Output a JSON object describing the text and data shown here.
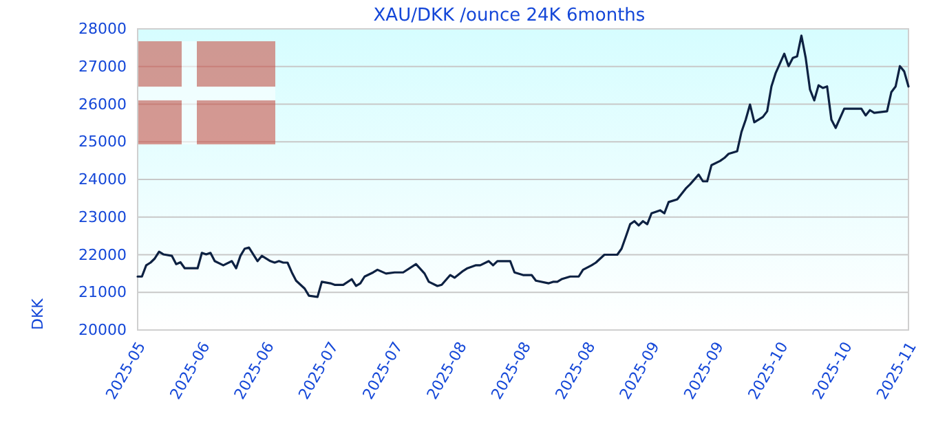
{
  "chart_data": {
    "type": "line",
    "title": "XAU/DKK /ounce 24K 6months",
    "ylabel": "DKK",
    "x": [
      "2025-05-18",
      "2025-05-19",
      "2025-05-20",
      "2025-05-21",
      "2025-05-22",
      "2025-05-23",
      "2025-05-24",
      "2025-05-26",
      "2025-05-27",
      "2025-05-28",
      "2025-05-29",
      "2025-06-01",
      "2025-06-02",
      "2025-06-03",
      "2025-06-04",
      "2025-06-05",
      "2025-06-07",
      "2025-06-09",
      "2025-06-10",
      "2025-06-11",
      "2025-06-12",
      "2025-06-13",
      "2025-06-15",
      "2025-06-16",
      "2025-06-18",
      "2025-06-19",
      "2025-06-20",
      "2025-06-21",
      "2025-06-22",
      "2025-06-23",
      "2025-06-24",
      "2025-06-26",
      "2025-06-27",
      "2025-06-29",
      "2025-06-30",
      "2025-07-02",
      "2025-07-03",
      "2025-07-05",
      "2025-07-07",
      "2025-07-08",
      "2025-07-09",
      "2025-07-10",
      "2025-07-12",
      "2025-07-13",
      "2025-07-15",
      "2025-07-17",
      "2025-07-19",
      "2025-07-22",
      "2025-07-24",
      "2025-07-25",
      "2025-07-27",
      "2025-07-28",
      "2025-07-30",
      "2025-07-31",
      "2025-08-02",
      "2025-08-03",
      "2025-08-05",
      "2025-08-06",
      "2025-08-08",
      "2025-08-09",
      "2025-08-10",
      "2025-08-13",
      "2025-08-14",
      "2025-08-16",
      "2025-08-18",
      "2025-08-19",
      "2025-08-22",
      "2025-08-23",
      "2025-08-24",
      "2025-08-25",
      "2025-08-27",
      "2025-08-29",
      "2025-08-30",
      "2025-09-01",
      "2025-09-02",
      "2025-09-04",
      "2025-09-07",
      "2025-09-08",
      "2025-09-09",
      "2025-09-10",
      "2025-09-11",
      "2025-09-12",
      "2025-09-13",
      "2025-09-14",
      "2025-09-15",
      "2025-09-17",
      "2025-09-18",
      "2025-09-19",
      "2025-09-21",
      "2025-09-23",
      "2025-09-24",
      "2025-09-26",
      "2025-09-27",
      "2025-09-28",
      "2025-09-29",
      "2025-10-01",
      "2025-10-02",
      "2025-10-03",
      "2025-10-05",
      "2025-10-06",
      "2025-10-07",
      "2025-10-08",
      "2025-10-09",
      "2025-10-11",
      "2025-10-12",
      "2025-10-13",
      "2025-10-14",
      "2025-10-16",
      "2025-10-17",
      "2025-10-18",
      "2025-10-19",
      "2025-10-20",
      "2025-10-21",
      "2025-10-22",
      "2025-10-23",
      "2025-10-24",
      "2025-10-25",
      "2025-10-26",
      "2025-10-27",
      "2025-10-28",
      "2025-10-30",
      "2025-11-03",
      "2025-11-04",
      "2025-11-05",
      "2025-11-06",
      "2025-11-09",
      "2025-11-10",
      "2025-11-11",
      "2025-11-12",
      "2025-11-13",
      "2025-11-14"
    ],
    "series": [
      {
        "color": "#0d2142",
        "values": [
          21420,
          21420,
          21720,
          21790,
          21900,
          22080,
          22010,
          21970,
          21750,
          21800,
          21640,
          21640,
          22050,
          22010,
          22050,
          21830,
          21720,
          21830,
          21640,
          21970,
          22160,
          22190,
          21830,
          21970,
          21830,
          21790,
          21830,
          21790,
          21790,
          21530,
          21310,
          21100,
          20910,
          20880,
          21280,
          21240,
          21200,
          21200,
          21350,
          21170,
          21240,
          21420,
          21530,
          21600,
          21500,
          21530,
          21530,
          21750,
          21500,
          21280,
          21170,
          21200,
          21460,
          21390,
          21570,
          21640,
          21720,
          21720,
          21830,
          21720,
          21830,
          21830,
          21530,
          21460,
          21460,
          21310,
          21240,
          21280,
          21280,
          21350,
          21420,
          21420,
          21600,
          21720,
          21790,
          22000,
          22000,
          22160,
          22480,
          22810,
          22890,
          22780,
          22890,
          22810,
          23100,
          23180,
          23100,
          23400,
          23470,
          23760,
          23870,
          24130,
          23950,
          23950,
          24380,
          24490,
          24570,
          24680,
          24750,
          25260,
          25590,
          25990,
          25520,
          25660,
          25810,
          26470,
          26830,
          27340,
          27010,
          27230,
          27270,
          27820,
          27230,
          26390,
          26100,
          26500,
          26430,
          26470,
          25590,
          25370,
          25880,
          25880,
          25700,
          25840,
          25770,
          25810,
          26320,
          26470,
          27010,
          26870,
          26470
        ]
      }
    ],
    "xlim": [
      "2025-05-18",
      "2025-11-14"
    ],
    "xticks": [
      {
        "value": "2025-05-18",
        "label": "2025-05"
      },
      {
        "value": "2025-06-02",
        "label": "2025-06"
      },
      {
        "value": "2025-06-17",
        "label": "2025-06"
      },
      {
        "value": "2025-07-02",
        "label": "2025-07"
      },
      {
        "value": "2025-07-17",
        "label": "2025-07"
      },
      {
        "value": "2025-08-01",
        "label": "2025-08"
      },
      {
        "value": "2025-08-16",
        "label": "2025-08"
      },
      {
        "value": "2025-08-31",
        "label": "2025-08"
      },
      {
        "value": "2025-09-15",
        "label": "2025-09"
      },
      {
        "value": "2025-09-30",
        "label": "2025-09"
      },
      {
        "value": "2025-10-15",
        "label": "2025-10"
      },
      {
        "value": "2025-10-30",
        "label": "2025-10"
      },
      {
        "value": "2025-11-14",
        "label": "2025-11"
      }
    ],
    "ylim": [
      20000,
      28000
    ],
    "yticks": [
      20000,
      21000,
      22000,
      23000,
      24000,
      25000,
      26000,
      27000,
      28000
    ],
    "grid": "y",
    "marker": "none",
    "line_style": "solid"
  }
}
